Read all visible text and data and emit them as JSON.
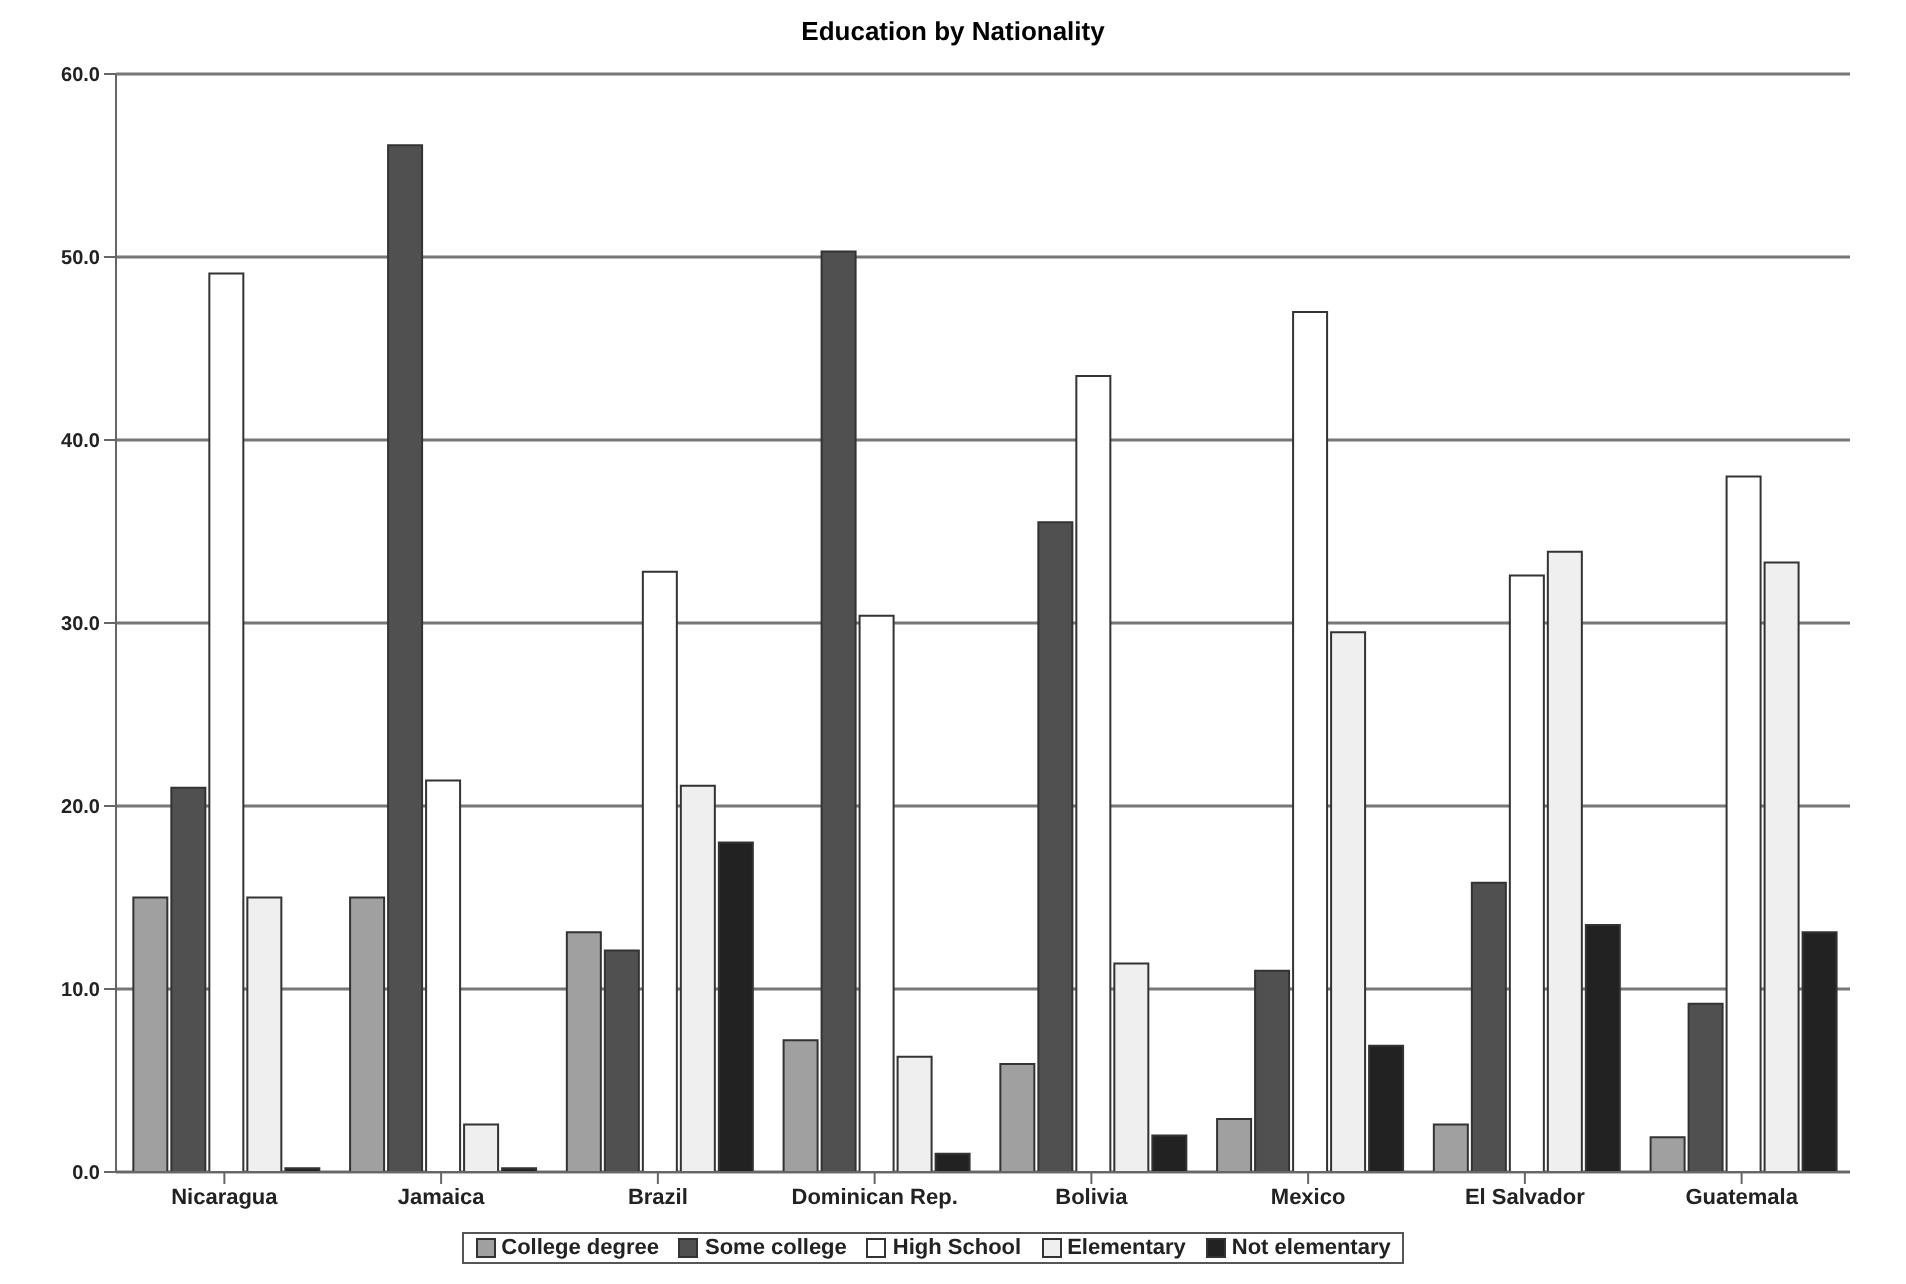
{
  "chart_data": {
    "type": "bar",
    "title": "Education by Nationality",
    "categories": [
      "Nicaragua",
      "Jamaica",
      "Brazil",
      "Dominican Rep.",
      "Bolivia",
      "Mexico",
      "El Salvador",
      "Guatemala"
    ],
    "series": [
      {
        "name": "College degree",
        "color": "#a0a0a0",
        "values": [
          15,
          15,
          13.1,
          7.2,
          5.9,
          2.9,
          2.6,
          1.9
        ]
      },
      {
        "name": "Some college",
        "color": "#505050",
        "values": [
          21,
          56.1,
          12.1,
          50.3,
          35.5,
          11,
          15.8,
          9.2
        ]
      },
      {
        "name": "High School",
        "color": "#ffffff",
        "values": [
          49.1,
          21.4,
          32.8,
          30.4,
          43.5,
          47,
          32.6,
          38
        ]
      },
      {
        "name": "Elementary",
        "color": "#efefef",
        "values": [
          15,
          2.6,
          21.1,
          6.3,
          11.4,
          29.5,
          33.9,
          33.3
        ]
      },
      {
        "name": "Not elementary",
        "color": "#222222",
        "values": [
          0.2,
          0.2,
          18,
          1,
          2,
          6.9,
          13.5,
          13.1
        ]
      }
    ],
    "ylim": [
      0,
      60
    ],
    "yticks": [
      {
        "value": 0,
        "label": "0.0"
      },
      {
        "value": 10,
        "label": "10.0"
      },
      {
        "value": 20,
        "label": "20.0"
      },
      {
        "value": 30,
        "label": "30.0"
      },
      {
        "value": 40,
        "label": "40.0"
      },
      {
        "value": 50,
        "label": "50.0"
      },
      {
        "value": 60,
        "label": "60.0"
      }
    ],
    "grid": "y",
    "legend": "bottom"
  }
}
